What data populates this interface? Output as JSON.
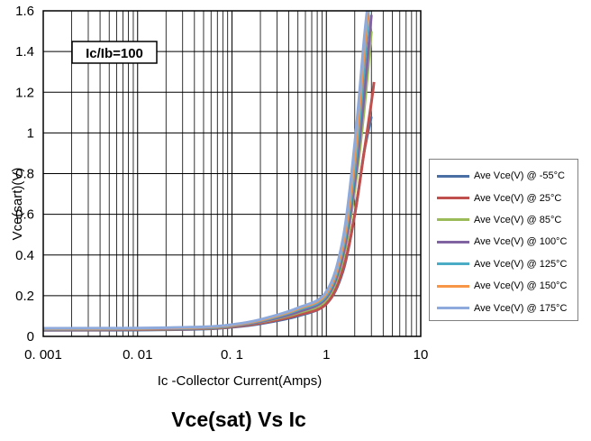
{
  "chart_data": {
    "type": "line",
    "title": "Vce(sat) Vs Ic",
    "xlabel": "Ic -Collector Current(Amps)",
    "ylabel": "Vce(sart)(V)",
    "x_scale": "log",
    "xlim": [
      0.001,
      10
    ],
    "ylim": [
      0,
      1.6
    ],
    "grid": true,
    "legend_position": "right",
    "x_ticks": [
      {
        "value": 0.001,
        "label": "0. 001"
      },
      {
        "value": 0.01,
        "label": "0. 01"
      },
      {
        "value": 0.1,
        "label": "0. 1"
      },
      {
        "value": 1,
        "label": "1"
      },
      {
        "value": 10,
        "label": "10"
      }
    ],
    "y_ticks": [
      {
        "value": 0,
        "label": "0"
      },
      {
        "value": 0.2,
        "label": "0.2"
      },
      {
        "value": 0.4,
        "label": "0.4"
      },
      {
        "value": 0.6,
        "label": "0.6"
      },
      {
        "value": 0.8,
        "label": "0.8"
      },
      {
        "value": 1,
        "label": "1"
      },
      {
        "value": 1.2,
        "label": "1.2"
      },
      {
        "value": 1.4,
        "label": "1.4"
      },
      {
        "value": 1.6,
        "label": "1.6"
      }
    ],
    "annotation": "Ic/Ib=100",
    "series": [
      {
        "name": "Ave Vce(V) @ -55°C",
        "color": "#4a6fa5",
        "x": [
          0.001,
          0.01,
          0.05,
          0.1,
          0.2,
          0.5,
          1,
          1.5,
          2,
          2.5,
          3
        ],
        "y": [
          0.03,
          0.031,
          0.036,
          0.045,
          0.062,
          0.1,
          0.16,
          0.32,
          0.6,
          0.9,
          1.08
        ]
      },
      {
        "name": "Ave Vce(V) @ 25°C",
        "color": "#c0504d",
        "x": [
          0.001,
          0.01,
          0.05,
          0.1,
          0.2,
          0.5,
          1,
          1.5,
          2,
          2.5,
          3,
          3.2
        ],
        "y": [
          0.032,
          0.033,
          0.038,
          0.047,
          0.065,
          0.105,
          0.16,
          0.33,
          0.6,
          0.9,
          1.15,
          1.25
        ]
      },
      {
        "name": "Ave Vce(V) @ 85°C",
        "color": "#9bbb59",
        "x": [
          0.001,
          0.01,
          0.05,
          0.1,
          0.2,
          0.5,
          1,
          1.5,
          2,
          2.5,
          3
        ],
        "y": [
          0.034,
          0.035,
          0.04,
          0.05,
          0.07,
          0.115,
          0.18,
          0.38,
          0.72,
          1.1,
          1.5
        ]
      },
      {
        "name": "Ave Vce(V) @ 100°C",
        "color": "#8064a2",
        "x": [
          0.001,
          0.01,
          0.05,
          0.1,
          0.2,
          0.5,
          1,
          1.5,
          2,
          2.5,
          3
        ],
        "y": [
          0.035,
          0.036,
          0.041,
          0.051,
          0.072,
          0.12,
          0.19,
          0.4,
          0.76,
          1.17,
          1.58
        ]
      },
      {
        "name": "Ave Vce(V) @ 125°C",
        "color": "#4bacc6",
        "x": [
          0.001,
          0.01,
          0.05,
          0.1,
          0.2,
          0.5,
          1,
          1.5,
          2,
          2.5,
          2.8
        ],
        "y": [
          0.037,
          0.038,
          0.043,
          0.053,
          0.076,
          0.13,
          0.2,
          0.43,
          0.82,
          1.3,
          1.6
        ]
      },
      {
        "name": "Ave Vce(V) @ 150°C",
        "color": "#f79646",
        "x": [
          0.001,
          0.01,
          0.05,
          0.1,
          0.2,
          0.5,
          1,
          1.5,
          2,
          2.5,
          2.75
        ],
        "y": [
          0.038,
          0.039,
          0.045,
          0.055,
          0.079,
          0.135,
          0.21,
          0.45,
          0.88,
          1.38,
          1.6
        ]
      },
      {
        "name": "Ave Vce(V) @ 175°C",
        "color": "#8ea9db",
        "x": [
          0.001,
          0.01,
          0.05,
          0.1,
          0.2,
          0.5,
          1,
          1.5,
          2,
          2.5,
          2.7
        ],
        "y": [
          0.04,
          0.041,
          0.047,
          0.058,
          0.083,
          0.14,
          0.22,
          0.48,
          0.95,
          1.45,
          1.6
        ]
      }
    ]
  }
}
